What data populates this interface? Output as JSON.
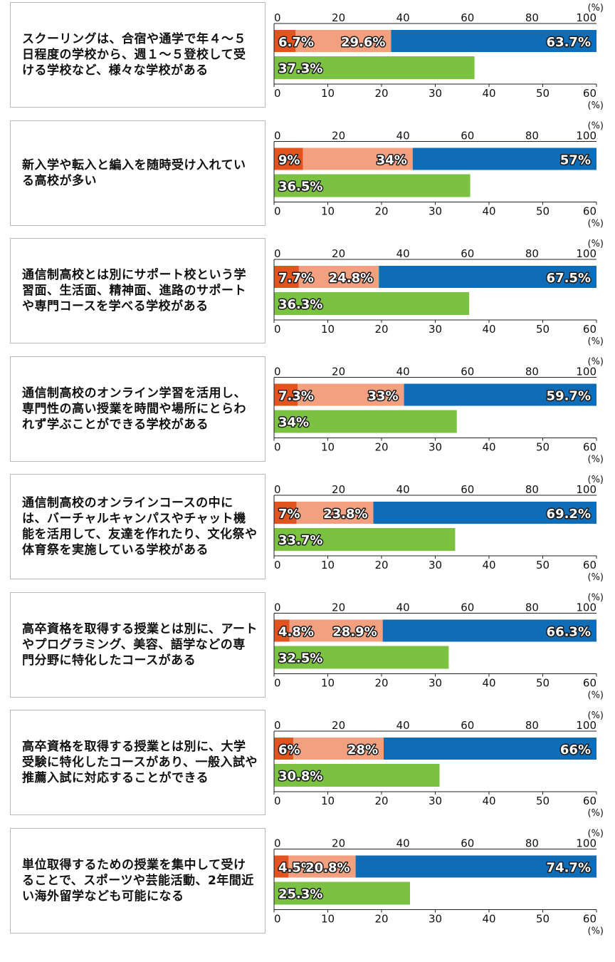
{
  "chart_data": {
    "type": "bar",
    "title": "",
    "top_axis": {
      "ticks": [
        "0",
        "20",
        "40",
        "60",
        "80",
        "100"
      ],
      "unit": "(%)",
      "range": [
        0,
        100
      ]
    },
    "bottom_axis": {
      "ticks": [
        "0",
        "10",
        "20",
        "30",
        "40",
        "50",
        "60"
      ],
      "unit": "(%)",
      "range": [
        0,
        60
      ]
    },
    "colors": {
      "segment_1": "#e3531f",
      "segment_2": "#f2a080",
      "segment_3": "#0f6cb6",
      "single": "#7cc242"
    },
    "rows": [
      {
        "label": "スクーリングは、合宿や通学で年４〜５日程度の学校から、週１〜５登校して受ける学校など、様々な学校がある",
        "stacked": [
          6.7,
          29.6,
          63.7
        ],
        "stacked_labels": [
          "6.7%",
          "29.6%",
          "63.7%"
        ],
        "single": 37.3,
        "single_label": "37.3%"
      },
      {
        "label": "新入学や転入と編入を随時受け入れている高校が多い",
        "stacked": [
          9,
          34,
          57
        ],
        "stacked_labels": [
          "9%",
          "34%",
          "57%"
        ],
        "single": 36.5,
        "single_label": "36.5%"
      },
      {
        "label": "通信制高校とは別にサポート校という学習面、生活面、精神面、進路のサポートや専門コースを学べる学校がある",
        "stacked": [
          7.7,
          24.8,
          67.5
        ],
        "stacked_labels": [
          "7.7%",
          "24.8%",
          "67.5%"
        ],
        "single": 36.3,
        "single_label": "36.3%"
      },
      {
        "label": "通信制高校のオンライン学習を活用し、専門性の高い授業を時間や場所にとらわれず学ぶことができる学校がある",
        "stacked": [
          7.3,
          33,
          59.7
        ],
        "stacked_labels": [
          "7.3%",
          "33%",
          "59.7%"
        ],
        "single": 34,
        "single_label": "34%"
      },
      {
        "label": "通信制高校のオンラインコースの中には、バーチャルキャンパスやチャット機能を活用して、友達を作れたり、文化祭や体育祭を実施している学校がある",
        "stacked": [
          7,
          23.8,
          69.2
        ],
        "stacked_labels": [
          "7%",
          "23.8%",
          "69.2%"
        ],
        "single": 33.7,
        "single_label": "33.7%"
      },
      {
        "label": "高卒資格を取得する授業とは別に、アートやプログラミング、美容、語学などの専門分野に特化したコースがある",
        "stacked": [
          4.8,
          28.9,
          66.3
        ],
        "stacked_labels": [
          "4.8%",
          "28.9%",
          "66.3%"
        ],
        "single": 32.5,
        "single_label": "32.5%"
      },
      {
        "label": "高卒資格を取得する授業とは別に、大学受験に特化したコースがあり、一般入試や推薦入試に対応することができる",
        "stacked": [
          6,
          28,
          66
        ],
        "stacked_labels": [
          "6%",
          "28%",
          "66%"
        ],
        "single": 30.8,
        "single_label": "30.8%"
      },
      {
        "label": "単位取得するための授業を集中して受けることで、スポーツや芸能活動、2年間近い海外留学なども可能になる",
        "stacked": [
          4.5,
          20.8,
          74.7
        ],
        "stacked_labels": [
          "4.5%",
          "20.8%",
          "74.7%"
        ],
        "single": 25.3,
        "single_label": "25.3%"
      }
    ]
  }
}
